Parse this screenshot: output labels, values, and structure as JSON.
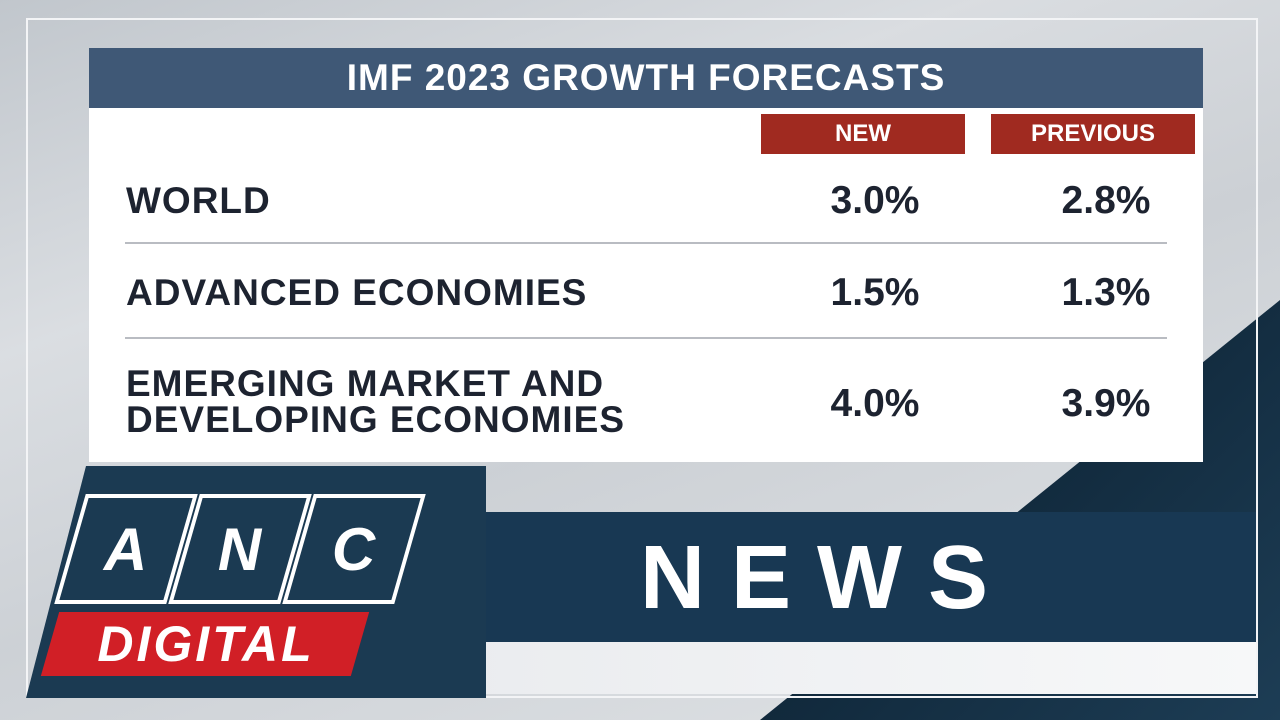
{
  "card": {
    "title": "IMF 2023 GROWTH FORECASTS",
    "columns": {
      "new": "NEW",
      "previous": "PREVIOUS"
    },
    "rows": [
      {
        "label_lines": [
          "WORLD"
        ],
        "new": "3.0%",
        "previous": "2.8%"
      },
      {
        "label_lines": [
          "ADVANCED ECONOMIES"
        ],
        "new": "1.5%",
        "previous": "1.3%"
      },
      {
        "label_lines": [
          "EMERGING MARKET AND",
          "DEVELOPING ECONOMIES"
        ],
        "new": "4.0%",
        "previous": "3.9%"
      }
    ]
  },
  "branding": {
    "logo_letters": [
      "A",
      "N",
      "C"
    ],
    "logo_subtitle": "DIGITAL",
    "section": "NEWS"
  },
  "colors": {
    "title_bar": "#3f5876",
    "column_header": "#a02a20",
    "band": "#183853",
    "digital_red": "#d11f26"
  }
}
